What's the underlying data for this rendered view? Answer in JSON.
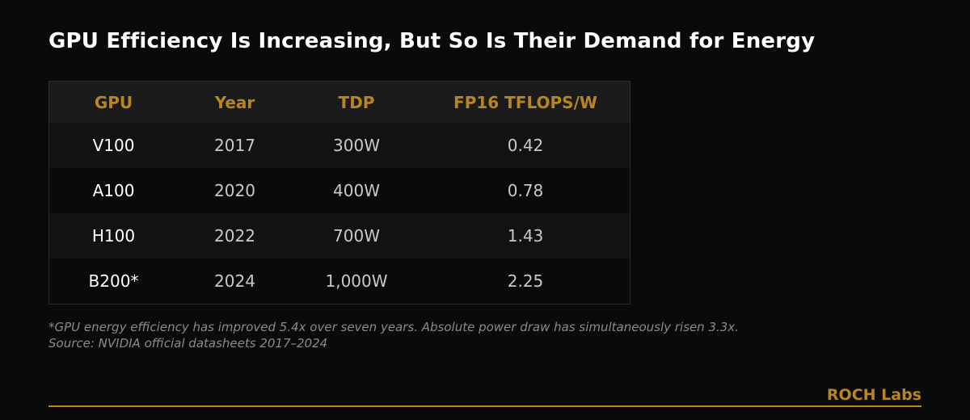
{
  "title": "GPU Efficiency Is Increasing, But So Is Their Demand for Energy",
  "chart_data": {
    "type": "table",
    "columns": [
      "GPU",
      "Year",
      "TDP",
      "FP16 TFLOPS/W"
    ],
    "rows": [
      [
        "V100",
        "2017",
        "300W",
        "0.42"
      ],
      [
        "A100",
        "2020",
        "400W",
        "0.78"
      ],
      [
        "H100",
        "2022",
        "700W",
        "1.43"
      ],
      [
        "B200*",
        "2024",
        "1,000W",
        "2.25"
      ]
    ]
  },
  "footnote": "*GPU energy efficiency has improved 5.4x over seven years. Absolute power draw has simultaneously risen 3.3x.",
  "source": "Source: NVIDIA official datasheets 2017–2024",
  "brand": "ROCH Labs",
  "colors": {
    "accent": "#b8861f",
    "background": "#0a0a0a"
  }
}
